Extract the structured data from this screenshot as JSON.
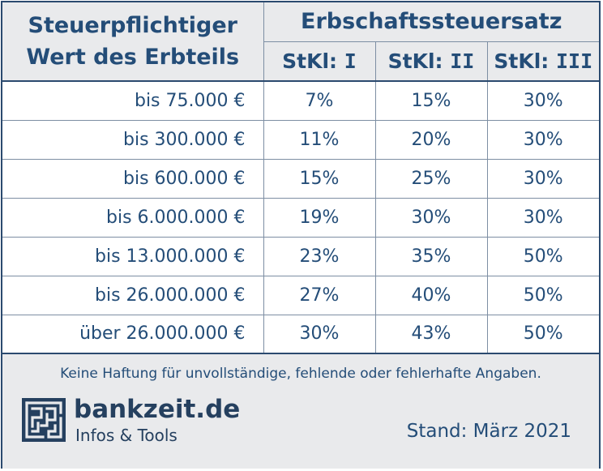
{
  "header": {
    "left_title_line1": "Steuerpflichtiger",
    "left_title_line2": "Wert des Erbteils",
    "right_title": "Erbschaftssteuersatz",
    "classes": [
      {
        "prefix": "StKl:",
        "numeral": "I"
      },
      {
        "prefix": "StKl:",
        "numeral": "II"
      },
      {
        "prefix": "StKl:",
        "numeral": "III"
      }
    ]
  },
  "rows": [
    {
      "amount": "bis 75.000 €",
      "rates": [
        "7%",
        "15%",
        "30%"
      ]
    },
    {
      "amount": "bis 300.000 €",
      "rates": [
        "11%",
        "20%",
        "30%"
      ]
    },
    {
      "amount": "bis 600.000 €",
      "rates": [
        "15%",
        "25%",
        "30%"
      ]
    },
    {
      "amount": "bis 6.000.000 €",
      "rates": [
        "19%",
        "30%",
        "30%"
      ]
    },
    {
      "amount": "bis 13.000.000 €",
      "rates": [
        "23%",
        "35%",
        "50%"
      ]
    },
    {
      "amount": "bis 26.000.000 €",
      "rates": [
        "27%",
        "40%",
        "50%"
      ]
    },
    {
      "amount": "über 26.000.000 €",
      "rates": [
        "30%",
        "43%",
        "50%"
      ]
    }
  ],
  "footer": {
    "disclaimer": "Keine Haftung für unvollständige, fehlende oder fehlerhafte Angaben.",
    "brand": "bankzeit.de",
    "tagline": "Infos & Tools",
    "stand": "Stand: März 2021",
    "logo_icon": "maze-logo-icon"
  },
  "colors": {
    "text": "#244d78",
    "border": "#2b4a6f",
    "header_bg": "#e9eaec",
    "brand": "#25405f"
  }
}
